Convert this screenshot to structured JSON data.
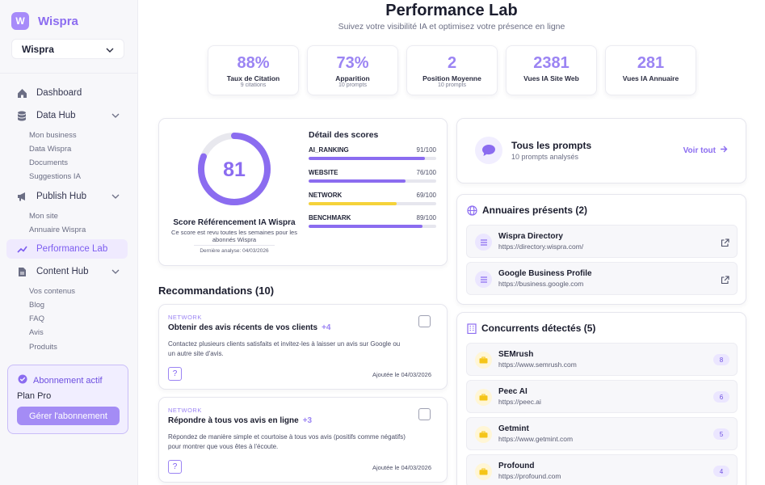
{
  "brand": {
    "logo_letter": "W",
    "name": "Wispra"
  },
  "workspace": {
    "selected": "Wispra"
  },
  "nav": {
    "dashboard": "Dashboard",
    "data_hub": "Data Hub",
    "data_hub_items": [
      "Mon business",
      "Data Wispra",
      "Documents",
      "Suggestions IA"
    ],
    "publish_hub": "Publish Hub",
    "publish_hub_items": [
      "Mon site",
      "Annuaire Wispra"
    ],
    "performance_lab": "Performance Lab",
    "content_hub": "Content Hub",
    "content_hub_items": [
      "Vos contenus",
      "Blog",
      "FAQ",
      "Avis",
      "Produits"
    ]
  },
  "plan": {
    "title": "Abonnement actif",
    "name": "Plan Pro",
    "button": "Gérer l'abonnement"
  },
  "header": {
    "title": "Performance Lab",
    "subtitle": "Suivez votre visibilité IA et optimisez votre présence en ligne"
  },
  "stats": [
    {
      "value": "88%",
      "label": "Taux de Citation",
      "sub": "9 citations"
    },
    {
      "value": "73%",
      "label": "Apparition",
      "sub": "10 prompts"
    },
    {
      "value": "2",
      "label": "Position Moyenne",
      "sub": "10 prompts"
    },
    {
      "value": "2381",
      "label": "Vues IA Site Web",
      "sub": ""
    },
    {
      "value": "281",
      "label": "Vues IA Annuaire",
      "sub": ""
    }
  ],
  "score": {
    "value": "81",
    "percent": 81,
    "label": "Score Référencement IA Wispra",
    "desc": "Ce score est revu toutes les semaines pour les abonnés Wispra",
    "date": "Dernière analyse: 04/03/2026"
  },
  "details": {
    "title": "Détail des scores",
    "rows": [
      {
        "name": "AI_RANKING",
        "value": "91/100",
        "pct": 91,
        "color": "#8b6cf0"
      },
      {
        "name": "WEBSITE",
        "value": "76/100",
        "pct": 76,
        "color": "#8b6cf0"
      },
      {
        "name": "NETWORK",
        "value": "69/100",
        "pct": 69,
        "color": "#f5d23a"
      },
      {
        "name": "BENCHMARK",
        "value": "89/100",
        "pct": 89,
        "color": "#8b6cf0"
      }
    ]
  },
  "recommendations": {
    "title": "Recommandations (10)",
    "items": [
      {
        "category": "NETWORK",
        "title": "Obtenir des avis récents de vos clients",
        "points": "+4",
        "desc": "Contactez plusieurs clients satisfaits et invitez-les à laisser un avis sur Google ou un autre site d'avis.",
        "help": "?",
        "date": "Ajoutée le 04/03/2026"
      },
      {
        "category": "NETWORK",
        "title": "Répondre à tous vos avis en ligne",
        "points": "+3",
        "desc": "Répondez de manière simple et courtoise à tous vos avis (positifs comme négatifs) pour montrer que vous êtes à l'écoute.",
        "help": "?",
        "date": "Ajoutée le 04/03/2026"
      }
    ]
  },
  "prompts": {
    "title": "Tous les prompts",
    "sub": "10 prompts analysés",
    "link": "Voir tout"
  },
  "directories": {
    "title": "Annuaires présents (2)",
    "items": [
      {
        "name": "Wispra Directory",
        "url": "https://directory.wispra.com/"
      },
      {
        "name": "Google Business Profile",
        "url": "https://business.google.com"
      }
    ]
  },
  "competitors": {
    "title": "Concurrents détectés (5)",
    "items": [
      {
        "name": "SEMrush",
        "url": "https://www.semrush.com",
        "count": "8"
      },
      {
        "name": "Peec AI",
        "url": "https://peec.ai",
        "count": "6"
      },
      {
        "name": "Getmint",
        "url": "https://www.getmint.com",
        "count": "5"
      },
      {
        "name": "Profound",
        "url": "https://profound.com",
        "count": "4"
      }
    ]
  }
}
